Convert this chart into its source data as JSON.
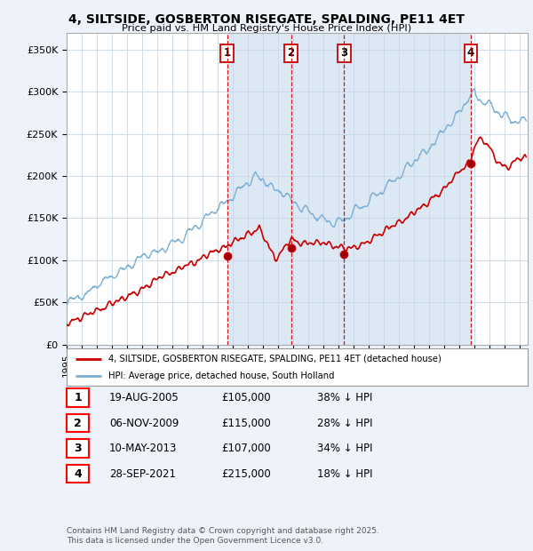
{
  "title": "4, SILTSIDE, GOSBERTON RISEGATE, SPALDING, PE11 4ET",
  "subtitle": "Price paid vs. HM Land Registry's House Price Index (HPI)",
  "ylabel_ticks": [
    "£0",
    "£50K",
    "£100K",
    "£150K",
    "£200K",
    "£250K",
    "£300K",
    "£350K"
  ],
  "ytick_values": [
    0,
    50000,
    100000,
    150000,
    200000,
    250000,
    300000,
    350000
  ],
  "ylim": [
    0,
    370000
  ],
  "xlim_start": 1995.0,
  "xlim_end": 2025.5,
  "legend_line1": "4, SILTSIDE, GOSBERTON RISEGATE, SPALDING, PE11 4ET (detached house)",
  "legend_line2": "HPI: Average price, detached house, South Holland",
  "transactions": [
    {
      "num": 1,
      "date": "19-AUG-2005",
      "price": "£105,000",
      "pct": "38%",
      "dir": "↓",
      "year": 2005.62
    },
    {
      "num": 2,
      "date": "06-NOV-2009",
      "price": "£115,000",
      "pct": "28%",
      "dir": "↓",
      "year": 2009.84
    },
    {
      "num": 3,
      "date": "10-MAY-2013",
      "price": "£107,000",
      "pct": "34%",
      "dir": "↓",
      "year": 2013.36
    },
    {
      "num": 4,
      "date": "28-SEP-2021",
      "price": "£215,000",
      "pct": "18%",
      "dir": "↓",
      "year": 2021.74
    }
  ],
  "footer": "Contains HM Land Registry data © Crown copyright and database right 2025.\nThis data is licensed under the Open Government Licence v3.0.",
  "bg_color": "#eef3fb",
  "plot_bg": "#ffffff",
  "shade_color": "#dde8f5",
  "red_line_color": "#cc0000",
  "blue_line_color": "#7bafd4",
  "vline_color": "#cc0000",
  "transaction_prices": [
    105000,
    115000,
    107000,
    215000
  ],
  "transaction_years": [
    2005.62,
    2009.84,
    2013.36,
    2021.74
  ]
}
